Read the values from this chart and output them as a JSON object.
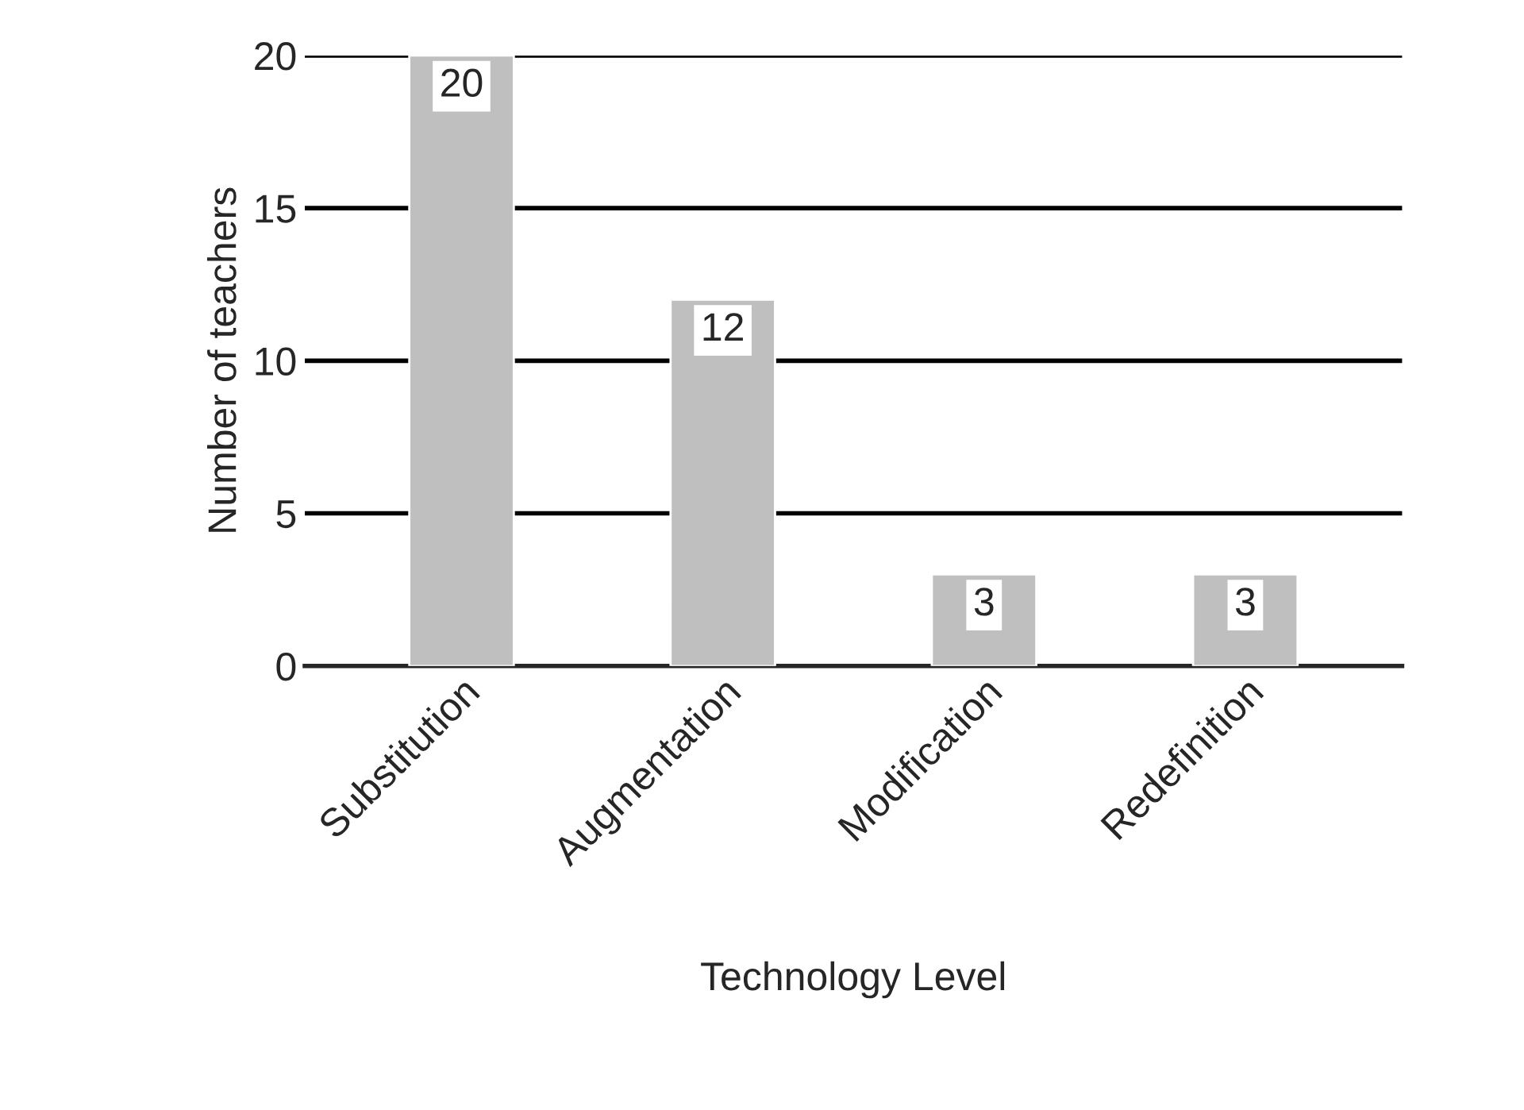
{
  "chart_data": {
    "type": "bar",
    "xlabel": "Technology Level",
    "ylabel": "Number of teachers",
    "categories": [
      "Substitution",
      "Augmentation",
      "Modification",
      "Redefinition"
    ],
    "values": [
      20,
      12,
      3,
      3
    ],
    "color": "#bfbfbf",
    "ylim": [
      0,
      20
    ],
    "yticks": [
      0,
      5,
      10,
      15,
      20
    ],
    "grid": "y",
    "data_labels": true
  }
}
